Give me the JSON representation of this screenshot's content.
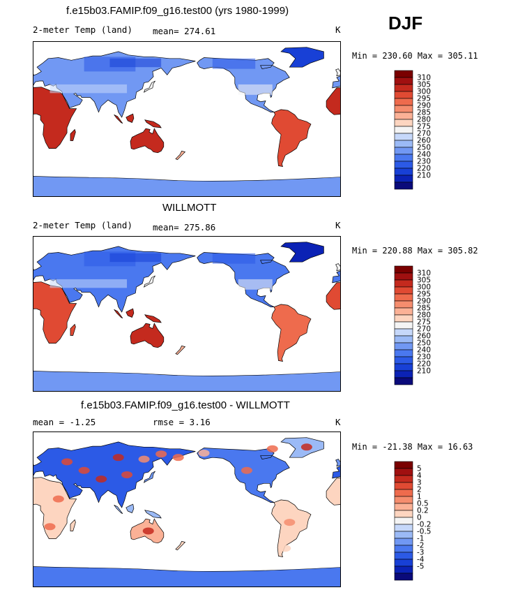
{
  "season": "DJF",
  "colors": {
    "land_scale": [
      "#0a0a7a",
      "#0b22b5",
      "#1840d6",
      "#2c5ae6",
      "#4a78ef",
      "#7198f3",
      "#9bbaf6",
      "#c6d8fa",
      "#f4f4f4",
      "#fdd5c0",
      "#fbb196",
      "#f58d6e",
      "#ee6b4d",
      "#e04a33",
      "#c42a1e",
      "#a01010",
      "#7a0000"
    ],
    "ocean": "#ffffff",
    "coast": "#000000"
  },
  "panels": [
    {
      "title": "f.e15b03.FAMIP.f09_g16.test00 (yrs 1980-1999)",
      "left_label": "2-meter Temp (land)",
      "center_label": "mean= 274.61",
      "right_label": "K",
      "minmax": "Min = 230.60 Max = 305.11",
      "colorbar_labels": [
        "310",
        "305",
        "300",
        "295",
        "290",
        "285",
        "280",
        "275",
        "270",
        "260",
        "250",
        "240",
        "230",
        "220",
        "210"
      ]
    },
    {
      "title": "WILLMOTT",
      "left_label": "2-meter Temp (land)",
      "center_label": "mean= 275.86",
      "right_label": "K",
      "minmax": "Min = 220.88 Max = 305.82",
      "colorbar_labels": [
        "310",
        "305",
        "300",
        "295",
        "290",
        "285",
        "280",
        "275",
        "270",
        "260",
        "250",
        "240",
        "230",
        "220",
        "210"
      ]
    },
    {
      "title": "f.e15b03.FAMIP.f09_g16.test00 - WILLMOTT",
      "left_label": "mean =   -1.25",
      "center_label": "rmse =    3.16",
      "right_label": "K",
      "minmax": "Min = -21.38 Max =  16.63",
      "colorbar_labels": [
        "5",
        "4",
        "3",
        "2",
        "1",
        "0.5",
        "0.2",
        "0",
        "-0.2",
        "-0.5",
        "-1",
        "-2",
        "-3",
        "-4",
        "-5"
      ]
    }
  ],
  "chart_data": [
    {
      "type": "heatmap",
      "title": "f.e15b03.FAMIP.f09_g16.test00 (yrs 1980-1999)",
      "variable": "2-meter Temp (land)",
      "units": "K",
      "mean": 274.61,
      "min": 230.6,
      "max": 305.11,
      "levels": [
        210,
        220,
        230,
        240,
        250,
        260,
        270,
        275,
        280,
        285,
        290,
        295,
        300,
        305,
        310
      ]
    },
    {
      "type": "heatmap",
      "title": "WILLMOTT",
      "variable": "2-meter Temp (land)",
      "units": "K",
      "mean": 275.86,
      "min": 220.88,
      "max": 305.82,
      "levels": [
        210,
        220,
        230,
        240,
        250,
        260,
        270,
        275,
        280,
        285,
        290,
        295,
        300,
        305,
        310
      ]
    },
    {
      "type": "heatmap",
      "title": "f.e15b03.FAMIP.f09_g16.test00 - WILLMOTT",
      "units": "K",
      "mean": -1.25,
      "rmse": 3.16,
      "min": -21.38,
      "max": 16.63,
      "levels": [
        -5,
        -4,
        -3,
        -2,
        -1,
        -0.5,
        -0.2,
        0,
        0.2,
        0.5,
        1,
        2,
        3,
        4,
        5
      ]
    }
  ]
}
